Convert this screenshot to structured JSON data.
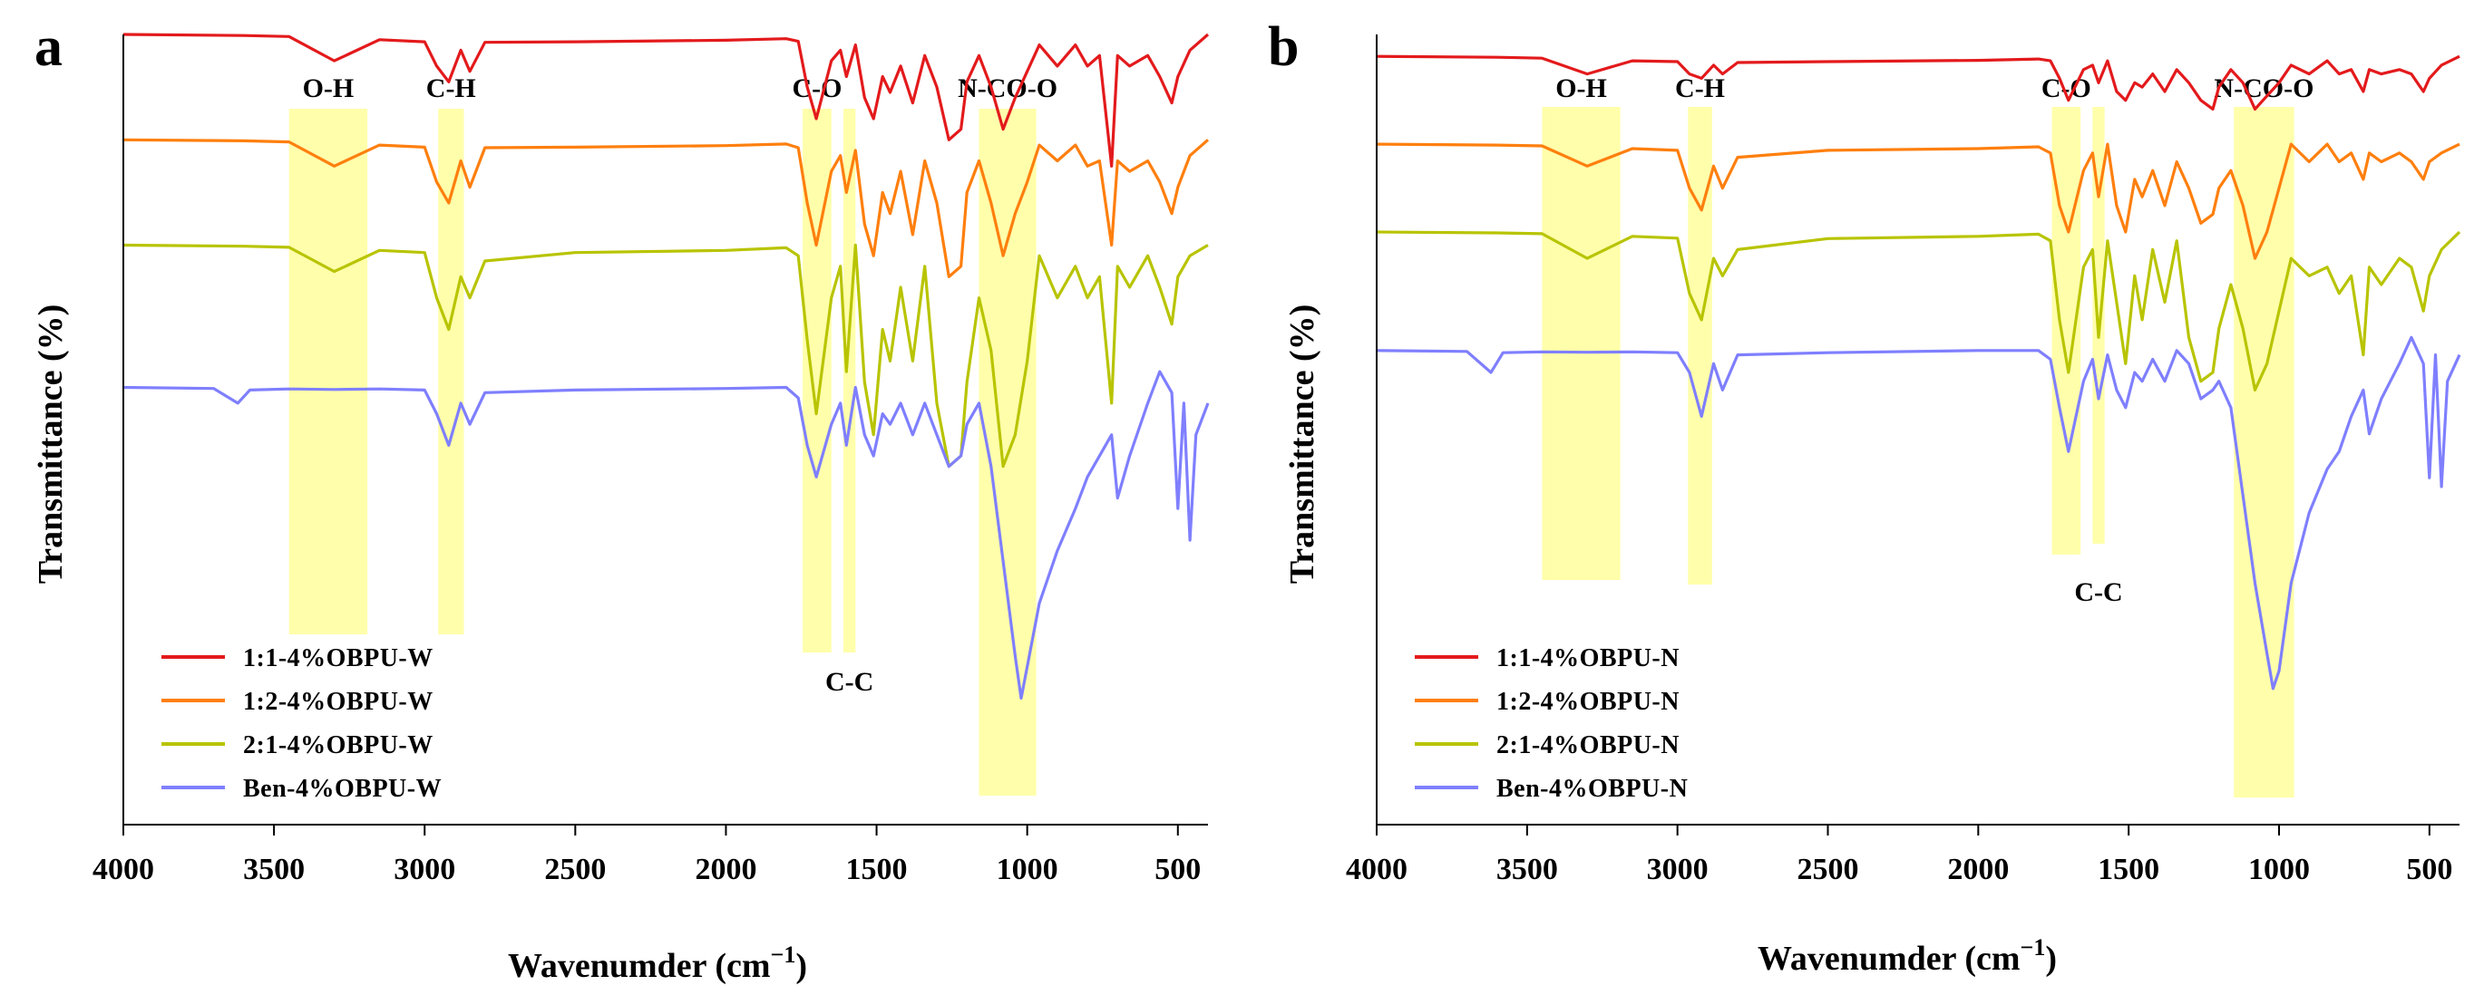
{
  "chart_data": [
    {
      "type": "line",
      "panel": "a",
      "xlabel": "Wavenumder (cm",
      "xlabel_sup": "−1",
      "xlabel_close": ")",
      "ylabel": "Transmittance (%)",
      "xlim": [
        4000,
        400
      ],
      "x_reversed": true,
      "yaxis_ticks": false,
      "xticks": [
        4000,
        3500,
        3000,
        2500,
        2000,
        1500,
        1000,
        500
      ],
      "legend_position": "bottom-left",
      "bands": [
        {
          "label": "O-H",
          "from": 3450,
          "to": 3190,
          "label_pos": "top"
        },
        {
          "label": "C-H",
          "from": 2955,
          "to": 2870,
          "label_pos": "top"
        },
        {
          "label": "C-O",
          "from": 1745,
          "to": 1650,
          "label_pos": "top"
        },
        {
          "label": "C-C",
          "from": 1610,
          "to": 1570,
          "label_pos": "bottom"
        },
        {
          "label": "N-CO-O",
          "from": 1160,
          "to": 970,
          "label_pos": "top"
        }
      ],
      "series": [
        {
          "name": "1:1-4%OBPU-W",
          "color": "#e31a1c",
          "x": [
            4000,
            3600,
            3450,
            3300,
            3150,
            3000,
            2960,
            2920,
            2880,
            2850,
            2800,
            2500,
            2000,
            1800,
            1760,
            1730,
            1700,
            1650,
            1620,
            1600,
            1570,
            1540,
            1510,
            1480,
            1455,
            1420,
            1380,
            1340,
            1300,
            1260,
            1220,
            1200,
            1160,
            1120,
            1080,
            1040,
            1000,
            960,
            900,
            840,
            800,
            760,
            720,
            700,
            660,
            600,
            560,
            520,
            500,
            460,
            400
          ],
          "y": [
            100,
            99.8,
            99.6,
            95,
            99,
            98.6,
            94,
            91,
            97,
            93,
            98.5,
            98.6,
            98.9,
            99.2,
            98.7,
            90,
            84,
            95,
            97,
            92,
            98,
            88,
            84,
            92,
            89,
            94,
            87,
            96,
            90,
            80,
            82,
            91,
            96,
            90,
            82,
            88,
            93,
            98,
            94,
            98,
            94,
            96,
            75,
            96,
            94,
            96,
            92,
            87,
            92,
            97,
            100
          ]
        },
        {
          "name": "1:2-4%OBPU-W",
          "color": "#ff7f0e",
          "x": [
            4000,
            3600,
            3450,
            3300,
            3150,
            3000,
            2960,
            2920,
            2880,
            2850,
            2800,
            2500,
            2000,
            1800,
            1760,
            1730,
            1700,
            1650,
            1620,
            1600,
            1570,
            1540,
            1510,
            1480,
            1455,
            1420,
            1380,
            1340,
            1300,
            1260,
            1220,
            1200,
            1160,
            1120,
            1080,
            1040,
            1000,
            960,
            900,
            840,
            800,
            760,
            720,
            700,
            660,
            600,
            560,
            520,
            500,
            460,
            400
          ],
          "y": [
            80,
            79.8,
            79.6,
            75,
            79,
            78.6,
            72,
            68,
            76,
            71,
            78.5,
            78.6,
            78.9,
            79.2,
            78.5,
            68,
            60,
            74,
            77,
            70,
            78,
            64,
            58,
            70,
            66,
            74,
            62,
            76,
            68,
            54,
            56,
            70,
            76,
            68,
            58,
            66,
            72,
            79,
            76,
            79,
            75,
            76,
            60,
            76,
            74,
            76,
            72,
            66,
            71,
            77,
            80
          ]
        },
        {
          "name": "2:1-4%OBPU-W",
          "color": "#b8c400",
          "x": [
            4000,
            3600,
            3450,
            3300,
            3150,
            3000,
            2960,
            2920,
            2880,
            2850,
            2800,
            2500,
            2000,
            1800,
            1760,
            1730,
            1700,
            1650,
            1620,
            1600,
            1570,
            1540,
            1510,
            1480,
            1455,
            1420,
            1380,
            1340,
            1300,
            1260,
            1220,
            1200,
            1160,
            1120,
            1080,
            1040,
            1000,
            960,
            900,
            840,
            800,
            760,
            720,
            700,
            660,
            600,
            560,
            520,
            500,
            460,
            400
          ],
          "y": [
            60,
            59.8,
            59.6,
            55,
            59,
            58.6,
            50,
            44,
            54,
            50,
            57,
            58.6,
            59,
            59.5,
            58,
            42,
            28,
            50,
            56,
            36,
            60,
            34,
            24,
            44,
            38,
            52,
            38,
            56,
            30,
            18,
            20,
            34,
            50,
            40,
            18,
            24,
            38,
            58,
            50,
            56,
            50,
            54,
            30,
            56,
            52,
            58,
            52,
            45,
            54,
            58,
            60
          ]
        },
        {
          "name": "Ben-4%OBPU-W",
          "color": "#7f7fff",
          "x": [
            4000,
            3700,
            3620,
            3580,
            3450,
            3300,
            3150,
            3000,
            2960,
            2920,
            2880,
            2850,
            2800,
            2500,
            2000,
            1800,
            1760,
            1730,
            1700,
            1650,
            1620,
            1600,
            1570,
            1540,
            1510,
            1480,
            1455,
            1420,
            1380,
            1340,
            1300,
            1260,
            1220,
            1200,
            1160,
            1120,
            1080,
            1040,
            1020,
            1000,
            960,
            900,
            840,
            800,
            760,
            720,
            700,
            660,
            600,
            560,
            520,
            500,
            480,
            460,
            440,
            400
          ],
          "y": [
            33,
            32.8,
            30,
            32.5,
            32.7,
            32.6,
            32.7,
            32.5,
            28,
            22,
            30,
            26,
            32,
            32.5,
            32.8,
            33,
            31,
            22,
            16,
            26,
            30,
            22,
            33,
            24,
            20,
            28,
            26,
            30,
            24,
            30,
            24,
            18,
            20,
            26,
            30,
            18,
            0,
            -18,
            -26,
            -20,
            -8,
            2,
            10,
            16,
            20,
            24,
            12,
            20,
            30,
            36,
            32,
            10,
            30,
            4,
            24,
            30
          ]
        }
      ]
    },
    {
      "type": "line",
      "panel": "b",
      "xlabel": "Wavenumder (cm",
      "xlabel_sup": "−1",
      "xlabel_close": ")",
      "ylabel": "Transmittance (%)",
      "xlim": [
        4000,
        400
      ],
      "x_reversed": true,
      "yaxis_ticks": false,
      "xticks": [
        4000,
        3500,
        3000,
        2500,
        2000,
        1500,
        1000,
        500
      ],
      "legend_position": "bottom-left",
      "bands": [
        {
          "label": "O-H",
          "from": 3450,
          "to": 3190,
          "label_pos": "top"
        },
        {
          "label": "C-H",
          "from": 2965,
          "to": 2885,
          "label_pos": "top"
        },
        {
          "label": "C-O",
          "from": 1755,
          "to": 1660,
          "label_pos": "top"
        },
        {
          "label": "C-C",
          "from": 1620,
          "to": 1580,
          "label_pos": "bottom"
        },
        {
          "label": "N-CO-O",
          "from": 1150,
          "to": 950,
          "label_pos": "top"
        }
      ],
      "series": [
        {
          "name": "1:1-4%OBPU-N",
          "color": "#e31a1c",
          "x": [
            4000,
            3600,
            3450,
            3300,
            3150,
            3000,
            2960,
            2920,
            2880,
            2850,
            2800,
            2500,
            2000,
            1800,
            1760,
            1730,
            1700,
            1650,
            1620,
            1600,
            1570,
            1540,
            1510,
            1480,
            1455,
            1420,
            1380,
            1340,
            1300,
            1260,
            1220,
            1200,
            1160,
            1120,
            1080,
            1040,
            1000,
            960,
            900,
            840,
            800,
            760,
            720,
            700,
            660,
            600,
            560,
            520,
            500,
            460,
            400
          ],
          "y": [
            100,
            99.8,
            99.6,
            96,
            99,
            98.8,
            96,
            95,
            98,
            96,
            98.6,
            98.8,
            99.1,
            99.4,
            99,
            95,
            90,
            97,
            98,
            94,
            99,
            92,
            90,
            94,
            93,
            96,
            92,
            97,
            94,
            90,
            88,
            93,
            97,
            94,
            88,
            91,
            94,
            98,
            96,
            99,
            96,
            97,
            92,
            97,
            96,
            97,
            96,
            92,
            95,
            98,
            100
          ]
        },
        {
          "name": "1:2-4%OBPU-N",
          "color": "#ff7f0e",
          "x": [
            4000,
            3600,
            3450,
            3300,
            3150,
            3000,
            2960,
            2920,
            2880,
            2850,
            2800,
            2500,
            2000,
            1800,
            1760,
            1730,
            1700,
            1650,
            1620,
            1600,
            1570,
            1540,
            1510,
            1480,
            1455,
            1420,
            1380,
            1340,
            1300,
            1260,
            1220,
            1200,
            1160,
            1120,
            1080,
            1040,
            1000,
            960,
            900,
            840,
            800,
            760,
            720,
            700,
            660,
            600,
            560,
            520,
            500,
            460,
            400
          ],
          "y": [
            80,
            79.8,
            79.6,
            75,
            79,
            78.6,
            70,
            65,
            75,
            70,
            77,
            78.6,
            79,
            79.4,
            78,
            66,
            60,
            74,
            78,
            68,
            80,
            66,
            60,
            72,
            68,
            74,
            66,
            76,
            70,
            62,
            64,
            70,
            74,
            66,
            54,
            60,
            70,
            80,
            76,
            80,
            76,
            78,
            72,
            78,
            76,
            78,
            76,
            72,
            76,
            78,
            80
          ]
        },
        {
          "name": "2:1-4%OBPU-N",
          "color": "#b8c400",
          "x": [
            4000,
            3600,
            3450,
            3300,
            3150,
            3000,
            2960,
            2920,
            2880,
            2850,
            2800,
            2500,
            2000,
            1800,
            1760,
            1730,
            1700,
            1650,
            1620,
            1600,
            1570,
            1540,
            1510,
            1480,
            1455,
            1420,
            1380,
            1340,
            1300,
            1260,
            1220,
            1200,
            1160,
            1120,
            1080,
            1040,
            1000,
            960,
            900,
            840,
            800,
            760,
            720,
            700,
            660,
            600,
            560,
            520,
            500,
            460,
            400
          ],
          "y": [
            60,
            59.8,
            59.6,
            54,
            59,
            58.6,
            46,
            40,
            54,
            50,
            56,
            58.5,
            59,
            59.5,
            58,
            40,
            28,
            52,
            56,
            36,
            58,
            44,
            30,
            50,
            40,
            56,
            44,
            58,
            36,
            26,
            28,
            38,
            48,
            38,
            24,
            30,
            42,
            54,
            50,
            52,
            46,
            50,
            32,
            52,
            48,
            54,
            52,
            42,
            50,
            56,
            60
          ]
        },
        {
          "name": "Ben-4%OBPU-N",
          "color": "#7f7fff",
          "x": [
            4000,
            3700,
            3620,
            3580,
            3450,
            3300,
            3150,
            3000,
            2960,
            2920,
            2880,
            2850,
            2800,
            2500,
            2000,
            1800,
            1760,
            1730,
            1700,
            1650,
            1620,
            1600,
            1570,
            1540,
            1510,
            1480,
            1455,
            1420,
            1380,
            1340,
            1300,
            1260,
            1220,
            1200,
            1160,
            1120,
            1080,
            1040,
            1020,
            1000,
            960,
            900,
            840,
            800,
            760,
            720,
            700,
            660,
            600,
            560,
            520,
            500,
            480,
            460,
            440,
            400
          ],
          "y": [
            33,
            32.8,
            28,
            32.5,
            32.7,
            32.6,
            32.7,
            32.5,
            28,
            18,
            30,
            24,
            32,
            32.5,
            33,
            33,
            31,
            20,
            10,
            26,
            31,
            22,
            32,
            24,
            20,
            28,
            26,
            31,
            26,
            33,
            30,
            22,
            24,
            26,
            20,
            0,
            -20,
            -36,
            -44,
            -40,
            -20,
            -4,
            6,
            10,
            18,
            24,
            14,
            22,
            30,
            36,
            30,
            4,
            32,
            2,
            26,
            32
          ]
        }
      ]
    }
  ]
}
